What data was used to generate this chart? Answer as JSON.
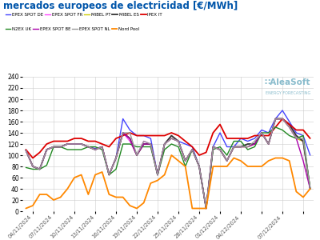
{
  "title": "mercados europeos de electricidad [€/MWh]",
  "title_color": "#0055aa",
  "background_color": "#ffffff",
  "grid_color": "#cccccc",
  "ylim": [
    0,
    240
  ],
  "yticks": [
    0,
    20,
    40,
    60,
    80,
    100,
    120,
    140,
    160,
    180,
    200,
    220,
    240
  ],
  "xlabels": [
    "04/11/2024",
    "07/11/2024",
    "10/11/2024",
    "13/11/2024",
    "16/11/2024",
    "19/11/2024",
    "22/11/2024",
    "25/11/2024",
    "28/11/2024",
    "01/12/2024",
    "04/12/2024",
    "07/12/2024"
  ],
  "series": {
    "EPEX SPOT DE": {
      "color": "#4444ff",
      "lw": 1.0,
      "data": [
        109,
        80,
        75,
        110,
        115,
        115,
        120,
        120,
        120,
        115,
        112,
        115,
        65,
        95,
        165,
        145,
        135,
        135,
        130,
        65,
        120,
        130,
        125,
        120,
        115,
        80,
        5,
        115,
        140,
        115,
        115,
        130,
        125,
        130,
        145,
        140,
        165,
        180,
        160,
        140,
        135,
        100
      ]
    },
    "EPEX SPOT FR": {
      "color": "#ff44ff",
      "lw": 1.0,
      "data": [
        109,
        80,
        75,
        110,
        115,
        115,
        120,
        120,
        120,
        115,
        110,
        115,
        65,
        95,
        140,
        125,
        100,
        125,
        120,
        65,
        120,
        130,
        125,
        90,
        110,
        80,
        5,
        115,
        110,
        90,
        115,
        115,
        115,
        120,
        140,
        120,
        165,
        165,
        150,
        130,
        125,
        40
      ]
    },
    "MIBEL PT": {
      "color": "#cccc00",
      "lw": 1.0,
      "data": [
        109,
        80,
        75,
        110,
        115,
        115,
        120,
        120,
        120,
        115,
        110,
        115,
        65,
        95,
        140,
        130,
        100,
        120,
        120,
        65,
        120,
        130,
        125,
        90,
        110,
        80,
        5,
        115,
        110,
        90,
        115,
        115,
        115,
        120,
        140,
        120,
        165,
        165,
        150,
        130,
        125,
        40
      ]
    },
    "MIBEL ES": {
      "color": "#333333",
      "lw": 1.3,
      "data": [
        109,
        80,
        75,
        110,
        115,
        115,
        120,
        120,
        120,
        115,
        110,
        115,
        65,
        95,
        140,
        130,
        100,
        120,
        120,
        65,
        120,
        135,
        125,
        90,
        110,
        80,
        5,
        115,
        110,
        90,
        115,
        115,
        120,
        120,
        140,
        120,
        165,
        165,
        155,
        135,
        125,
        40
      ]
    },
    "IPEX IT": {
      "color": "#dd0000",
      "lw": 1.3,
      "data": [
        110,
        95,
        105,
        120,
        125,
        125,
        125,
        130,
        130,
        125,
        125,
        120,
        115,
        130,
        135,
        140,
        135,
        135,
        135,
        135,
        135,
        140,
        135,
        125,
        115,
        100,
        105,
        140,
        155,
        130,
        130,
        130,
        130,
        135,
        135,
        135,
        150,
        165,
        155,
        145,
        145,
        130
      ]
    },
    "N2EX UK": {
      "color": "#228822",
      "lw": 1.0,
      "data": [
        78,
        75,
        75,
        82,
        115,
        115,
        110,
        110,
        110,
        115,
        115,
        110,
        65,
        75,
        120,
        120,
        115,
        115,
        115,
        65,
        110,
        120,
        115,
        80,
        110,
        80,
        5,
        110,
        115,
        100,
        125,
        125,
        110,
        115,
        140,
        140,
        150,
        145,
        135,
        130,
        135,
        40
      ]
    },
    "EPEX SPOT BE": {
      "color": "#aa00aa",
      "lw": 1.0,
      "data": [
        109,
        80,
        75,
        110,
        115,
        115,
        120,
        120,
        120,
        115,
        110,
        115,
        65,
        95,
        140,
        130,
        100,
        120,
        120,
        65,
        120,
        130,
        125,
        90,
        110,
        80,
        5,
        115,
        110,
        90,
        115,
        115,
        115,
        120,
        140,
        120,
        165,
        165,
        150,
        130,
        90,
        40
      ]
    },
    "EPEX SPOT NL": {
      "color": "#999999",
      "lw": 1.0,
      "data": [
        109,
        80,
        75,
        110,
        115,
        115,
        120,
        120,
        120,
        115,
        110,
        115,
        65,
        95,
        140,
        140,
        100,
        125,
        120,
        65,
        120,
        130,
        125,
        90,
        110,
        80,
        5,
        115,
        110,
        90,
        115,
        115,
        115,
        125,
        140,
        120,
        165,
        165,
        150,
        130,
        130,
        40
      ]
    },
    "Nord Pool": {
      "color": "#ff8800",
      "lw": 1.3,
      "data": [
        5,
        10,
        30,
        30,
        20,
        25,
        40,
        60,
        65,
        30,
        65,
        70,
        30,
        25,
        25,
        10,
        5,
        15,
        50,
        55,
        65,
        100,
        90,
        80,
        5,
        5,
        5,
        80,
        80,
        80,
        95,
        90,
        80,
        80,
        80,
        90,
        95,
        95,
        90,
        35,
        25,
        40
      ]
    }
  },
  "legend_row1": [
    "EPEX SPOT DE",
    "EPEX SPOT FR",
    "MIBEL PT",
    "MIBEL ES",
    "IPEX IT"
  ],
  "legend_row2": [
    "N2EX UK",
    "EPEX SPOT BE",
    "EPEX SPOT NL",
    "Nord Pool"
  ],
  "logo_text": "∷AleaSoft",
  "logo_sub": "ENERGY FORECASTING",
  "logo_color": "#88bbcc"
}
